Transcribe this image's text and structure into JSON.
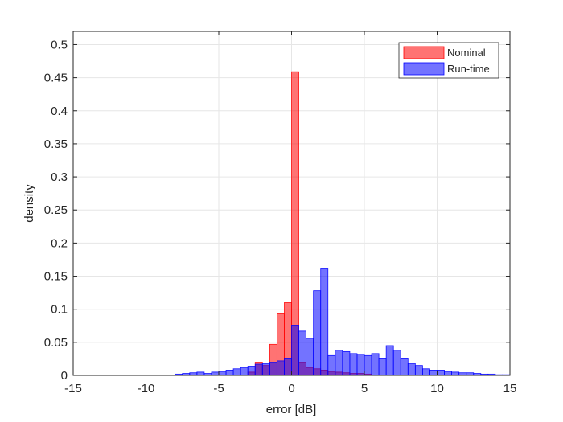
{
  "chart_data": {
    "type": "bar",
    "title": "",
    "xlabel": "error [dB]",
    "ylabel": "density",
    "xlim": [
      -15,
      15
    ],
    "ylim": [
      0,
      0.52
    ],
    "xticks": [
      -15,
      -10,
      -5,
      0,
      5,
      10,
      15
    ],
    "yticks": [
      0,
      0.05,
      0.1,
      0.15,
      0.2,
      0.25,
      0.3,
      0.35,
      0.4,
      0.45,
      0.5
    ],
    "xtick_labels": [
      "-15",
      "-10",
      "-5",
      "0",
      "5",
      "10",
      "15"
    ],
    "ytick_labels": [
      "0",
      "0.05",
      "0.1",
      "0.15",
      "0.2",
      "0.25",
      "0.3",
      "0.35",
      "0.4",
      "0.45",
      "0.5"
    ],
    "grid": true,
    "legend_position": "top-right",
    "bin_width": 0.5,
    "series": [
      {
        "name": "Nominal",
        "color": "#ff0000",
        "bin_starts": [
          -3,
          -2.5,
          -2,
          -1.5,
          -1,
          -0.5,
          0,
          0.5,
          1,
          1.5,
          2,
          2.5,
          3,
          3.5,
          4,
          4.5,
          5
        ],
        "values": [
          0.005,
          0.02,
          0.015,
          0.047,
          0.093,
          0.11,
          0.459,
          0.02,
          0.012,
          0.01,
          0.008,
          0.006,
          0.005,
          0.004,
          0.003,
          0.003,
          0.002
        ]
      },
      {
        "name": "Run-time",
        "color": "#0000ff",
        "bin_starts": [
          -8,
          -7.5,
          -7,
          -6.5,
          -6,
          -5.5,
          -5,
          -4.5,
          -4,
          -3.5,
          -3,
          -2.5,
          -2,
          -1.5,
          -1,
          -0.5,
          0,
          0.5,
          1,
          1.5,
          2,
          2.5,
          3,
          3.5,
          4,
          4.5,
          5,
          5.5,
          6,
          6.5,
          7,
          7.5,
          8,
          8.5,
          9,
          9.5,
          10,
          10.5,
          11,
          11.5,
          12,
          12.5,
          13,
          13.5,
          14,
          14.5
        ],
        "values": [
          0.002,
          0.003,
          0.004,
          0.005,
          0.003,
          0.005,
          0.006,
          0.008,
          0.01,
          0.012,
          0.014,
          0.017,
          0.018,
          0.02,
          0.022,
          0.025,
          0.076,
          0.067,
          0.056,
          0.128,
          0.161,
          0.03,
          0.038,
          0.036,
          0.033,
          0.032,
          0.03,
          0.033,
          0.025,
          0.045,
          0.038,
          0.025,
          0.018,
          0.015,
          0.01,
          0.008,
          0.008,
          0.006,
          0.005,
          0.004,
          0.004,
          0.003,
          0.002,
          0.002,
          0.001,
          0.001
        ]
      }
    ]
  }
}
